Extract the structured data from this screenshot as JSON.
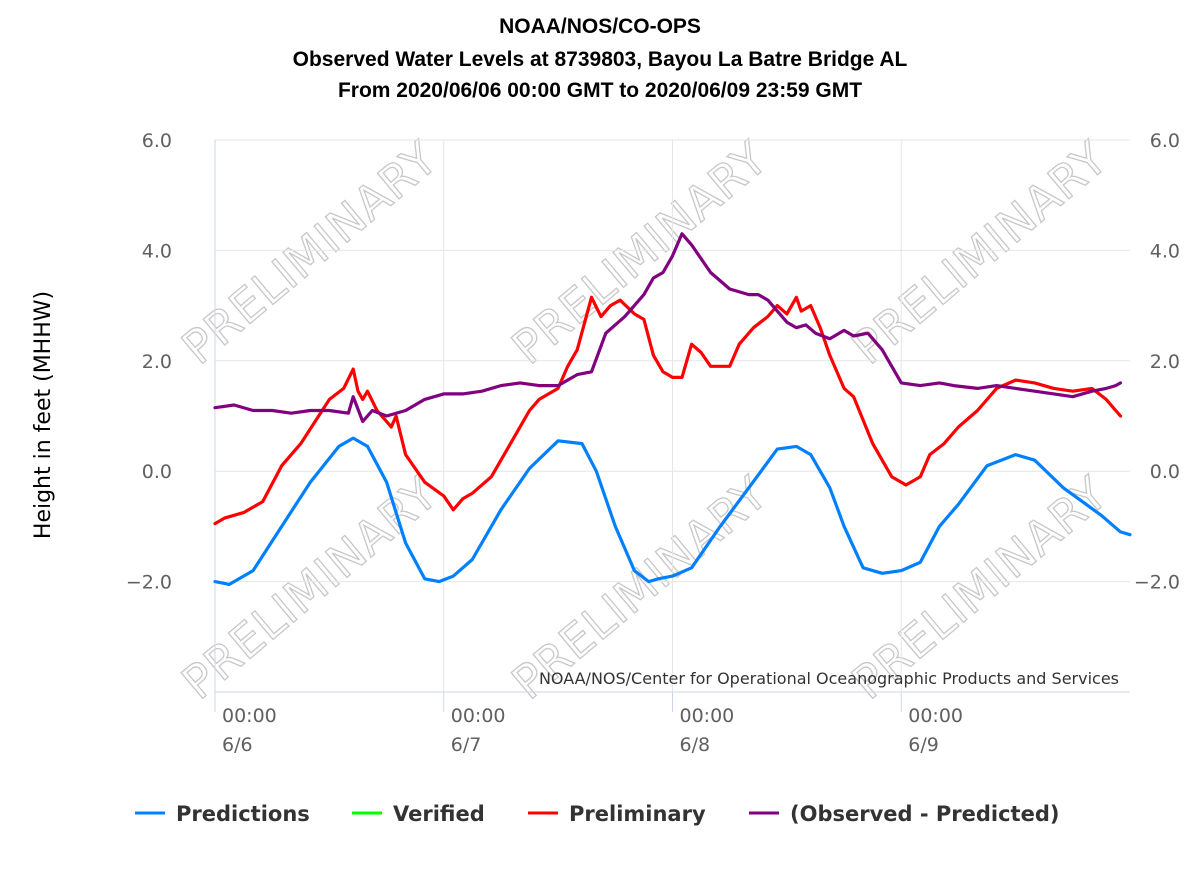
{
  "chart_data": {
    "type": "line",
    "title": [
      "NOAA/NOS/CO-OPS",
      "Observed Water Levels at 8739803, Bayou La Batre Bridge AL",
      "From 2020/06/06 00:00 GMT to 2020/06/09 23:59 GMT"
    ],
    "ylabel": "Height in feet (MHHW)",
    "xlabel": "",
    "ylim": [
      -4,
      6
    ],
    "xlim_hours": [
      0,
      96
    ],
    "yticks": [
      "6.0",
      "4.0",
      "2.0",
      "0.0",
      "−2.0"
    ],
    "ytick_values": [
      6,
      4,
      2,
      0,
      -2
    ],
    "xticks": [
      {
        "time": "00:00",
        "date": "6/6",
        "hour": 0
      },
      {
        "time": "00:00",
        "date": "6/7",
        "hour": 24
      },
      {
        "time": "00:00",
        "date": "6/8",
        "hour": 48
      },
      {
        "time": "00:00",
        "date": "6/9",
        "hour": 72
      }
    ],
    "grid": true,
    "watermark": "PRELIMINARY",
    "credit": "NOAA/NOS/Center for Operational Oceanographic Products and Services",
    "legend_position": "bottom",
    "series": [
      {
        "name": "Predictions",
        "color": "#0080ff",
        "x": [
          0,
          1.5,
          4,
          7,
          10,
          13,
          14.5,
          16,
          18,
          20,
          22,
          23.5,
          25,
          27,
          30,
          33,
          36,
          38.5,
          40,
          42,
          44,
          45.5,
          46.5,
          48,
          50,
          53,
          56,
          59,
          61,
          62.5,
          64.5,
          66,
          68,
          70,
          72,
          74,
          76,
          78,
          81,
          84,
          86,
          87.5,
          89,
          91,
          93,
          95,
          96
        ],
        "values": [
          -2.0,
          -2.05,
          -1.8,
          -1.0,
          -0.2,
          0.45,
          0.6,
          0.45,
          -0.2,
          -1.3,
          -1.95,
          -2.0,
          -1.9,
          -1.6,
          -0.7,
          0.05,
          0.55,
          0.5,
          0.0,
          -1.0,
          -1.8,
          -2.0,
          -1.95,
          -1.9,
          -1.75,
          -1.0,
          -0.3,
          0.4,
          0.45,
          0.3,
          -0.3,
          -1.0,
          -1.75,
          -1.85,
          -1.8,
          -1.65,
          -1.0,
          -0.6,
          0.1,
          0.3,
          0.2,
          -0.05,
          -0.3,
          -0.55,
          -0.8,
          -1.1,
          -1.15
        ]
      },
      {
        "name": "Verified",
        "color": "#00ff00",
        "x": [],
        "values": []
      },
      {
        "name": "Preliminary",
        "color": "#ff0000",
        "x": [
          0,
          1,
          3,
          5,
          7,
          9,
          10.5,
          12,
          13.5,
          14.5,
          15,
          15.5,
          16,
          17,
          18.5,
          19,
          20,
          22,
          24,
          25,
          26,
          27,
          29,
          31,
          33,
          34,
          36,
          37,
          38,
          39.5,
          40.5,
          41.5,
          42.5,
          44,
          45,
          46,
          47,
          48,
          49,
          50,
          51,
          52,
          53,
          54,
          55,
          56.5,
          58,
          59,
          60,
          61,
          61.5,
          62.5,
          63.5,
          64.5,
          66,
          67,
          69,
          71,
          72.5,
          74,
          75,
          76.5,
          78,
          80,
          82,
          84,
          86,
          88,
          90,
          92,
          93.5,
          94.5,
          95
        ],
        "values": [
          -0.95,
          -0.85,
          -0.75,
          -0.55,
          0.1,
          0.5,
          0.9,
          1.3,
          1.5,
          1.85,
          1.45,
          1.3,
          1.45,
          1.1,
          0.8,
          1.0,
          0.3,
          -0.2,
          -0.45,
          -0.7,
          -0.5,
          -0.4,
          -0.1,
          0.5,
          1.1,
          1.3,
          1.5,
          1.9,
          2.2,
          3.15,
          2.8,
          3.0,
          3.1,
          2.85,
          2.75,
          2.1,
          1.8,
          1.7,
          1.7,
          2.3,
          2.15,
          1.9,
          1.9,
          1.9,
          2.3,
          2.6,
          2.8,
          3.0,
          2.85,
          3.15,
          2.9,
          3.0,
          2.6,
          2.1,
          1.5,
          1.35,
          0.5,
          -0.1,
          -0.25,
          -0.1,
          0.3,
          0.5,
          0.8,
          1.1,
          1.5,
          1.65,
          1.6,
          1.5,
          1.45,
          1.5,
          1.3,
          1.1,
          1.0
        ]
      },
      {
        "name": "(Observed - Predicted)",
        "color": "#800080",
        "x": [
          0,
          2,
          4,
          6,
          8,
          10,
          12,
          14,
          14.5,
          15.5,
          16.5,
          18,
          20,
          22,
          24,
          26,
          28,
          30,
          32,
          34,
          36,
          38,
          39.5,
          41,
          43,
          45,
          46,
          47,
          48,
          49,
          50,
          52,
          54,
          56,
          57,
          58,
          59,
          60,
          61,
          62,
          63,
          64.5,
          66,
          67,
          68.5,
          70,
          72,
          74,
          76,
          77.5,
          80,
          82,
          84,
          86,
          88,
          90,
          92,
          93.5,
          94.5,
          95
        ],
        "values": [
          1.15,
          1.2,
          1.1,
          1.1,
          1.05,
          1.1,
          1.1,
          1.05,
          1.35,
          0.9,
          1.1,
          1.0,
          1.1,
          1.3,
          1.4,
          1.4,
          1.45,
          1.55,
          1.6,
          1.55,
          1.55,
          1.75,
          1.8,
          2.5,
          2.8,
          3.2,
          3.5,
          3.6,
          3.9,
          4.3,
          4.1,
          3.6,
          3.3,
          3.2,
          3.2,
          3.1,
          2.9,
          2.7,
          2.6,
          2.65,
          2.5,
          2.4,
          2.55,
          2.45,
          2.5,
          2.2,
          1.6,
          1.55,
          1.6,
          1.55,
          1.5,
          1.55,
          1.5,
          1.45,
          1.4,
          1.35,
          1.45,
          1.5,
          1.55,
          1.6
        ]
      }
    ]
  }
}
